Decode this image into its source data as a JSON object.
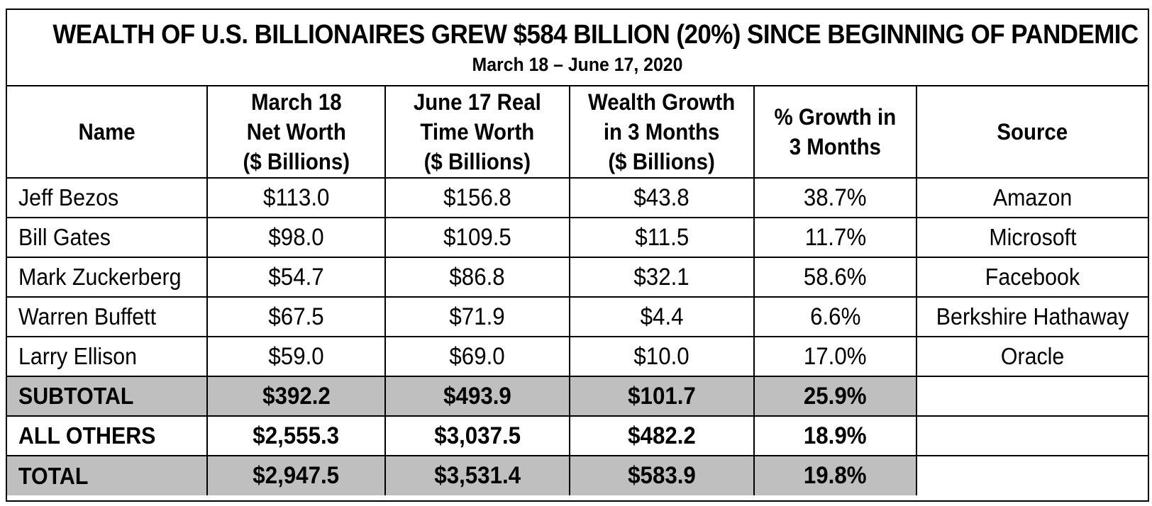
{
  "chart_data": {
    "type": "table",
    "title": "WEALTH OF U.S. BILLIONAIRES GREW $584 BILLION (20%) SINCE BEGINNING OF PANDEMIC",
    "subtitle": "March 18 – June 17, 2020",
    "columns": [
      "Name",
      "March 18\nNet Worth\n($ Billions)",
      "June 17 Real\nTime Worth\n($ Billions)",
      "Wealth Growth\nin 3 Months\n($ Billions)",
      "% Growth in\n3 Months",
      "Source"
    ],
    "rows": [
      {
        "name": "Jeff Bezos",
        "march18": "$113.0",
        "june17": "$156.8",
        "growth": "$43.8",
        "pct": "38.7%",
        "source": "Amazon"
      },
      {
        "name": "Bill Gates",
        "march18": "$98.0",
        "june17": "$109.5",
        "growth": "$11.5",
        "pct": "11.7%",
        "source": "Microsoft"
      },
      {
        "name": "Mark Zuckerberg",
        "march18": "$54.7",
        "june17": "$86.8",
        "growth": "$32.1",
        "pct": "58.6%",
        "source": "Facebook"
      },
      {
        "name": "Warren Buffett",
        "march18": "$67.5",
        "june17": "$71.9",
        "growth": "$4.4",
        "pct": "6.6%",
        "source": "Berkshire Hathaway"
      },
      {
        "name": "Larry Ellison",
        "march18": "$59.0",
        "june17": "$69.0",
        "growth": "$10.0",
        "pct": "17.0%",
        "source": "Oracle"
      }
    ],
    "summary_rows": [
      {
        "name": "SUBTOTAL",
        "march18": "$392.2",
        "june17": "$493.9",
        "growth": "$101.7",
        "pct": "25.9%",
        "source": "",
        "shaded": true
      },
      {
        "name": "ALL OTHERS",
        "march18": "$2,555.3",
        "june17": "$3,037.5",
        "growth": "$482.2",
        "pct": "18.9%",
        "source": "",
        "shaded": false
      },
      {
        "name": "TOTAL",
        "march18": "$2,947.5",
        "june17": "$3,531.4",
        "growth": "$583.9",
        "pct": "19.8%",
        "source": "",
        "shaded": true
      }
    ],
    "shade_color": "#bfbfbf"
  }
}
